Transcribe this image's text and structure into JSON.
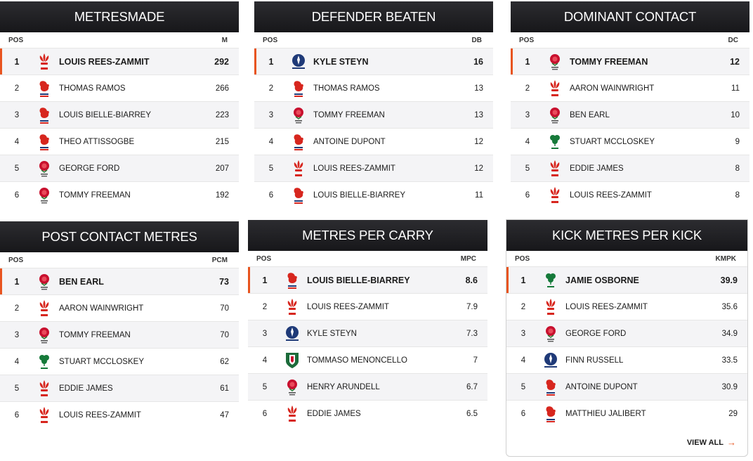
{
  "panels": [
    {
      "title": "METRESMADE",
      "pos_label": "POS",
      "stat_label": "M",
      "rows": [
        {
          "pos": "1",
          "team": "wales",
          "name": "LOUIS REES-ZAMMIT",
          "value": "292"
        },
        {
          "pos": "2",
          "team": "france",
          "name": "THOMAS RAMOS",
          "value": "266"
        },
        {
          "pos": "3",
          "team": "france",
          "name": "LOUIS BIELLE-BIARREY",
          "value": "223"
        },
        {
          "pos": "4",
          "team": "france",
          "name": "THEO ATTISSOGBE",
          "value": "215"
        },
        {
          "pos": "5",
          "team": "england",
          "name": "GEORGE FORD",
          "value": "207"
        },
        {
          "pos": "6",
          "team": "england",
          "name": "TOMMY FREEMAN",
          "value": "192"
        }
      ]
    },
    {
      "title": "DEFENDER BEATEN",
      "pos_label": "POS",
      "stat_label": "DB",
      "rows": [
        {
          "pos": "1",
          "team": "scotland",
          "name": "KYLE STEYN",
          "value": "16"
        },
        {
          "pos": "2",
          "team": "france",
          "name": "THOMAS RAMOS",
          "value": "13"
        },
        {
          "pos": "3",
          "team": "england",
          "name": "TOMMY FREEMAN",
          "value": "13"
        },
        {
          "pos": "4",
          "team": "france",
          "name": "ANTOINE DUPONT",
          "value": "12"
        },
        {
          "pos": "5",
          "team": "wales",
          "name": "LOUIS REES-ZAMMIT",
          "value": "12"
        },
        {
          "pos": "6",
          "team": "france",
          "name": "LOUIS BIELLE-BIARREY",
          "value": "11"
        }
      ]
    },
    {
      "title": "DOMINANT CONTACT",
      "pos_label": "POS",
      "stat_label": "DC",
      "rows": [
        {
          "pos": "1",
          "team": "england",
          "name": "TOMMY FREEMAN",
          "value": "12"
        },
        {
          "pos": "2",
          "team": "wales",
          "name": "AARON WAINWRIGHT",
          "value": "11"
        },
        {
          "pos": "3",
          "team": "england",
          "name": "BEN EARL",
          "value": "10"
        },
        {
          "pos": "4",
          "team": "ireland",
          "name": "STUART MCCLOSKEY",
          "value": "9"
        },
        {
          "pos": "5",
          "team": "wales",
          "name": "EDDIE JAMES",
          "value": "8"
        },
        {
          "pos": "6",
          "team": "wales",
          "name": "LOUIS REES-ZAMMIT",
          "value": "8"
        }
      ]
    },
    {
      "title": "POST CONTACT METRES",
      "pos_label": "POS",
      "stat_label": "PCM",
      "rows": [
        {
          "pos": "1",
          "team": "england",
          "name": "BEN EARL",
          "value": "73"
        },
        {
          "pos": "2",
          "team": "wales",
          "name": "AARON WAINWRIGHT",
          "value": "70"
        },
        {
          "pos": "3",
          "team": "england",
          "name": "TOMMY FREEMAN",
          "value": "70"
        },
        {
          "pos": "4",
          "team": "ireland",
          "name": "STUART MCCLOSKEY",
          "value": "62"
        },
        {
          "pos": "5",
          "team": "wales",
          "name": "EDDIE JAMES",
          "value": "61"
        },
        {
          "pos": "6",
          "team": "wales",
          "name": "LOUIS REES-ZAMMIT",
          "value": "47"
        }
      ]
    },
    {
      "title": "METRES PER CARRY",
      "pos_label": "POS",
      "stat_label": "MPC",
      "rows": [
        {
          "pos": "1",
          "team": "france",
          "name": "LOUIS BIELLE-BIARREY",
          "value": "8.6"
        },
        {
          "pos": "2",
          "team": "wales",
          "name": "LOUIS REES-ZAMMIT",
          "value": "7.9"
        },
        {
          "pos": "3",
          "team": "scotland",
          "name": "KYLE STEYN",
          "value": "7.3"
        },
        {
          "pos": "4",
          "team": "italy",
          "name": "TOMMASO MENONCELLO",
          "value": "7"
        },
        {
          "pos": "5",
          "team": "england",
          "name": "HENRY ARUNDELL",
          "value": "6.7"
        },
        {
          "pos": "6",
          "team": "wales",
          "name": "EDDIE JAMES",
          "value": "6.5"
        }
      ]
    },
    {
      "title": "KICK METRES PER KICK",
      "pos_label": "POS",
      "stat_label": "KMPK",
      "view_all": "VIEW ALL",
      "rows": [
        {
          "pos": "1",
          "team": "ireland",
          "name": "JAMIE OSBORNE",
          "value": "39.9"
        },
        {
          "pos": "2",
          "team": "wales",
          "name": "LOUIS REES-ZAMMIT",
          "value": "35.6"
        },
        {
          "pos": "3",
          "team": "england",
          "name": "GEORGE FORD",
          "value": "34.9"
        },
        {
          "pos": "4",
          "team": "scotland",
          "name": "FINN RUSSELL",
          "value": "33.5"
        },
        {
          "pos": "5",
          "team": "france",
          "name": "ANTOINE DUPONT",
          "value": "30.9"
        },
        {
          "pos": "6",
          "team": "france",
          "name": "MATTHIEU JALIBERT",
          "value": "29"
        }
      ]
    }
  ],
  "team_icons": {
    "wales": "wales-feathers-icon",
    "france": "france-rooster-icon",
    "england": "england-rose-icon",
    "scotland": "scotland-thistle-icon",
    "ireland": "ireland-shamrock-icon",
    "italy": "italy-shield-icon"
  },
  "colors": {
    "accent": "#e8541f",
    "header_bg": "#1e1e21",
    "row_alt": "#f4f4f6",
    "wales": "#d7261e",
    "france": "#d7261e",
    "england": "#c8102e",
    "scotland": "#1f3a78",
    "ireland": "#167a3a",
    "italy": "#1c6b3a"
  }
}
